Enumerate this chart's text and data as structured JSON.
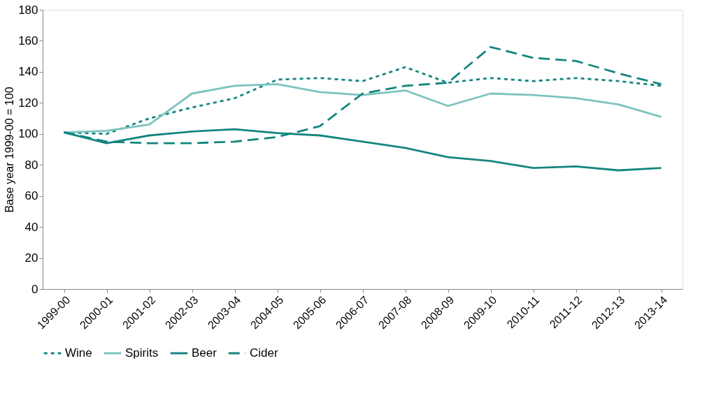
{
  "chart_data": {
    "type": "line",
    "ylabel": "Base year 1999-00 = 100",
    "categories": [
      "1999-00",
      "2000-01",
      "2001-02",
      "2002-03",
      "2003-04",
      "2004-05",
      "2005-06",
      "2006-07",
      "2007-08",
      "2008-09",
      "2009-10",
      "2010-11",
      "2011-12",
      "2012-13",
      "2013-14"
    ],
    "series": [
      {
        "name": "Wine",
        "color": "#14857f",
        "line_style": "dotted",
        "values": [
          101,
          100,
          110,
          117,
          123,
          135,
          136,
          134,
          143,
          133,
          136,
          134,
          136,
          134,
          131
        ]
      },
      {
        "name": "Spirits",
        "color": "#7cc3bf",
        "line_style": "solid",
        "values": [
          101,
          102,
          106,
          126,
          131,
          132,
          127,
          125,
          128,
          118,
          126,
          125,
          123,
          119,
          111
        ]
      },
      {
        "name": "Beer",
        "color": "#14857f",
        "line_style": "solid",
        "values": [
          101,
          94,
          99,
          101.5,
          103,
          100.5,
          99,
          95,
          91,
          85,
          82.5,
          78,
          79,
          76.5,
          78
        ]
      },
      {
        "name": "Cider",
        "color": "#14857f",
        "line_style": "dashed",
        "values": [
          101,
          95,
          94,
          94,
          95,
          98,
          105,
          126,
          131,
          133,
          156,
          149,
          147,
          139,
          132
        ]
      }
    ],
    "ylim": [
      0,
      180
    ],
    "yticks": [
      0,
      20,
      40,
      60,
      80,
      100,
      120,
      140,
      160,
      180
    ],
    "grid": false,
    "legend": "bottom",
    "marker": "none"
  }
}
